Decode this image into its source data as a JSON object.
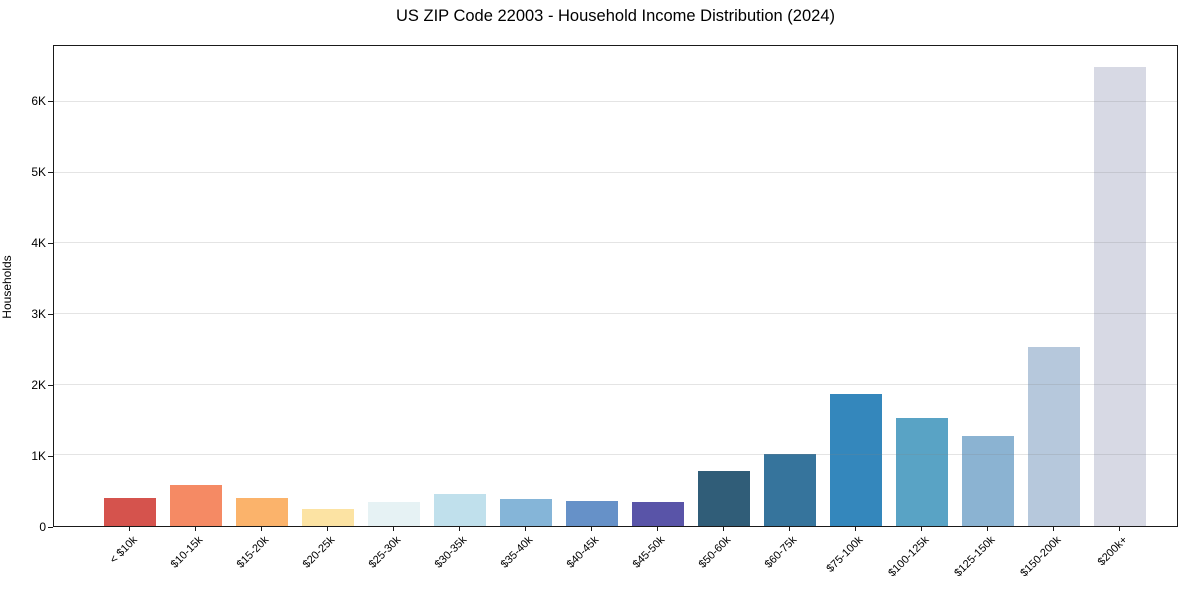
{
  "chart_data": {
    "type": "bar",
    "title": "US ZIP Code 22003 - Household Income Distribution (2024)",
    "xlabel": "",
    "ylabel": "Households",
    "ylim": [
      0,
      6790
    ],
    "grid": "horizontal",
    "legend": "none",
    "categories": [
      "< $10k",
      "$10-15k",
      "$15-20k",
      "$20-25k",
      "$25-30k",
      "$30-35k",
      "$35-40k",
      "$40-45k",
      "$45-50k",
      "$50-60k",
      "$60-75k",
      "$75-100k",
      "$100-125k",
      "$125-150k",
      "$150-200k",
      "$200k+"
    ],
    "values": [
      395,
      580,
      400,
      235,
      335,
      450,
      385,
      355,
      345,
      780,
      1015,
      1865,
      1530,
      1275,
      2530,
      6490
    ],
    "bar_colors": [
      "#d5534d",
      "#f58a64",
      "#fbb36b",
      "#fce3a3",
      "#e6f2f4",
      "#c0e0ec",
      "#85b5d8",
      "#6691c8",
      "#5954a8",
      "#305d78",
      "#36749c",
      "#3487bc",
      "#59a3c5",
      "#8bb3d2",
      "#b6c8dc",
      "#d7d9e4"
    ],
    "yticks": {
      "values": [
        0,
        1000,
        2000,
        3000,
        4000,
        5000,
        6000
      ],
      "labels": [
        "0",
        "1K",
        "2K",
        "3K",
        "4K",
        "5K",
        "6K"
      ]
    }
  }
}
